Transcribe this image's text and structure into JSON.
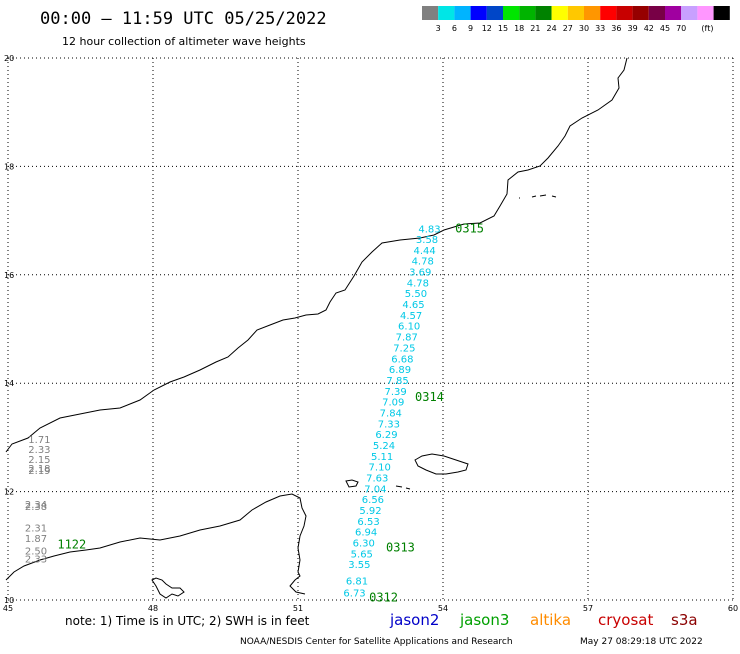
{
  "title": "00:00 – 11:59 UTC 05/25/2022",
  "subtitle": "12 hour collection of altimeter wave heights",
  "color_scale": {
    "colors": [
      "#808080",
      "#00e6e6",
      "#00b4ff",
      "#0000ff",
      "#0046c8",
      "#00e600",
      "#00b400",
      "#008200",
      "#ffff00",
      "#ffc800",
      "#ff9600",
      "#ff0000",
      "#c80000",
      "#960000",
      "#780046",
      "#a000a0",
      "#c8a0ff",
      "#ff96ff",
      "#000000"
    ],
    "labels": [
      "3",
      "6",
      "9",
      "12",
      "15",
      "18",
      "21",
      "24",
      "27",
      "30",
      "33",
      "36",
      "39",
      "42",
      "45",
      "70"
    ],
    "unit": "(ft)"
  },
  "axes": {
    "lon": {
      "min": 45,
      "max": 60,
      "ticks": [
        "45",
        "48",
        "51",
        "54",
        "57",
        "60"
      ]
    },
    "lat": {
      "min": 10,
      "max": 20,
      "ticks": [
        "10",
        "12",
        "14",
        "16",
        "18",
        "20"
      ]
    }
  },
  "tracks": [
    {
      "satellite": "jason3",
      "color": "#00c8e6",
      "points": [
        {
          "lat": 16.85,
          "lon": 53.72,
          "swh": "4.83"
        },
        {
          "lat": 16.66,
          "lon": 53.67,
          "swh": "3.58"
        },
        {
          "lat": 16.46,
          "lon": 53.62,
          "swh": "4.44"
        },
        {
          "lat": 16.26,
          "lon": 53.58,
          "swh": "4.78"
        },
        {
          "lat": 16.06,
          "lon": 53.53,
          "swh": "3.69"
        },
        {
          "lat": 15.86,
          "lon": 53.48,
          "swh": "4.78"
        },
        {
          "lat": 15.66,
          "lon": 53.44,
          "swh": "5.50"
        },
        {
          "lat": 15.46,
          "lon": 53.39,
          "swh": "4.65"
        },
        {
          "lat": 15.26,
          "lon": 53.34,
          "swh": "4.57"
        },
        {
          "lat": 15.06,
          "lon": 53.3,
          "swh": "6.10"
        },
        {
          "lat": 14.86,
          "lon": 53.25,
          "swh": "7.87"
        },
        {
          "lat": 14.66,
          "lon": 53.2,
          "swh": "7.25"
        },
        {
          "lat": 14.46,
          "lon": 53.16,
          "swh": "6.68"
        },
        {
          "lat": 14.26,
          "lon": 53.11,
          "swh": "6.89"
        },
        {
          "lat": 14.06,
          "lon": 53.06,
          "swh": "7.85"
        },
        {
          "lat": 13.86,
          "lon": 53.02,
          "swh": "7.39"
        },
        {
          "lat": 13.66,
          "lon": 52.97,
          "swh": "7.09"
        },
        {
          "lat": 13.46,
          "lon": 52.92,
          "swh": "7.84"
        },
        {
          "lat": 13.26,
          "lon": 52.88,
          "swh": "7.33"
        },
        {
          "lat": 13.06,
          "lon": 52.83,
          "swh": "6.29"
        },
        {
          "lat": 12.86,
          "lon": 52.78,
          "swh": "5.24"
        },
        {
          "lat": 12.66,
          "lon": 52.74,
          "swh": "5.11"
        },
        {
          "lat": 12.46,
          "lon": 52.69,
          "swh": "7.10"
        },
        {
          "lat": 12.26,
          "lon": 52.64,
          "swh": "7.63"
        },
        {
          "lat": 12.06,
          "lon": 52.6,
          "swh": "7.04"
        },
        {
          "lat": 11.86,
          "lon": 52.55,
          "swh": "6.56"
        },
        {
          "lat": 11.66,
          "lon": 52.5,
          "swh": "5.92"
        },
        {
          "lat": 11.46,
          "lon": 52.46,
          "swh": "6.53"
        },
        {
          "lat": 11.26,
          "lon": 52.41,
          "swh": "6.94"
        },
        {
          "lat": 11.06,
          "lon": 52.36,
          "swh": "6.30"
        },
        {
          "lat": 10.86,
          "lon": 52.32,
          "swh": "5.65"
        },
        {
          "lat": 10.66,
          "lon": 52.27,
          "swh": "3.55"
        },
        {
          "lat": 10.36,
          "lon": 52.22,
          "swh": "6.81"
        },
        {
          "lat": 10.14,
          "lon": 52.17,
          "swh": "6.73"
        }
      ]
    },
    {
      "satellite": "other",
      "color": "#808080",
      "points": [
        {
          "lat": 12.97,
          "lon": 45.65,
          "swh": "1.71"
        },
        {
          "lat": 12.79,
          "lon": 45.65,
          "swh": "2.33"
        },
        {
          "lat": 12.6,
          "lon": 45.65,
          "swh": "2.15"
        },
        {
          "lat": 12.44,
          "lon": 45.65,
          "swh": "2.18"
        },
        {
          "lat": 12.4,
          "lon": 45.65,
          "swh": "2.19"
        },
        {
          "lat": 11.77,
          "lon": 45.58,
          "swh": "2.34"
        },
        {
          "lat": 11.73,
          "lon": 45.58,
          "swh": "2.38"
        },
        {
          "lat": 11.34,
          "lon": 45.58,
          "swh": "2.31"
        },
        {
          "lat": 11.14,
          "lon": 45.58,
          "swh": "1.87"
        },
        {
          "lat": 10.91,
          "lon": 45.58,
          "swh": "2.50"
        },
        {
          "lat": 10.77,
          "lon": 45.58,
          "swh": "2.33"
        }
      ]
    }
  ],
  "pass_times": [
    {
      "label": "0315",
      "lat": 16.85,
      "lon": 54.55,
      "color": "#008000"
    },
    {
      "label": "0314",
      "lat": 13.75,
      "lon": 53.72,
      "color": "#008000"
    },
    {
      "label": "0313",
      "lat": 10.97,
      "lon": 53.12,
      "color": "#008000"
    },
    {
      "label": "0312",
      "lat": 10.05,
      "lon": 52.77,
      "color": "#008000"
    },
    {
      "label": "1122",
      "lat": 11.02,
      "lon": 46.32,
      "color": "#ff0000"
    }
  ],
  "note": "note: 1) Time is in UTC; 2) SWH is in feet",
  "legend": [
    {
      "name": "jason2",
      "color": "#0000c8"
    },
    {
      "name": "jason3",
      "color": "#00a000"
    },
    {
      "name": "altika",
      "color": "#ff8c00"
    },
    {
      "name": "cryosat",
      "color": "#c80000"
    },
    {
      "name": "s3a",
      "color": "#8b0000"
    }
  ],
  "footer": {
    "credit": "NOAA/NESDIS Center for Satellite Applications and Research",
    "timestamp": "May 27 08:29:18 UTC 2022"
  }
}
